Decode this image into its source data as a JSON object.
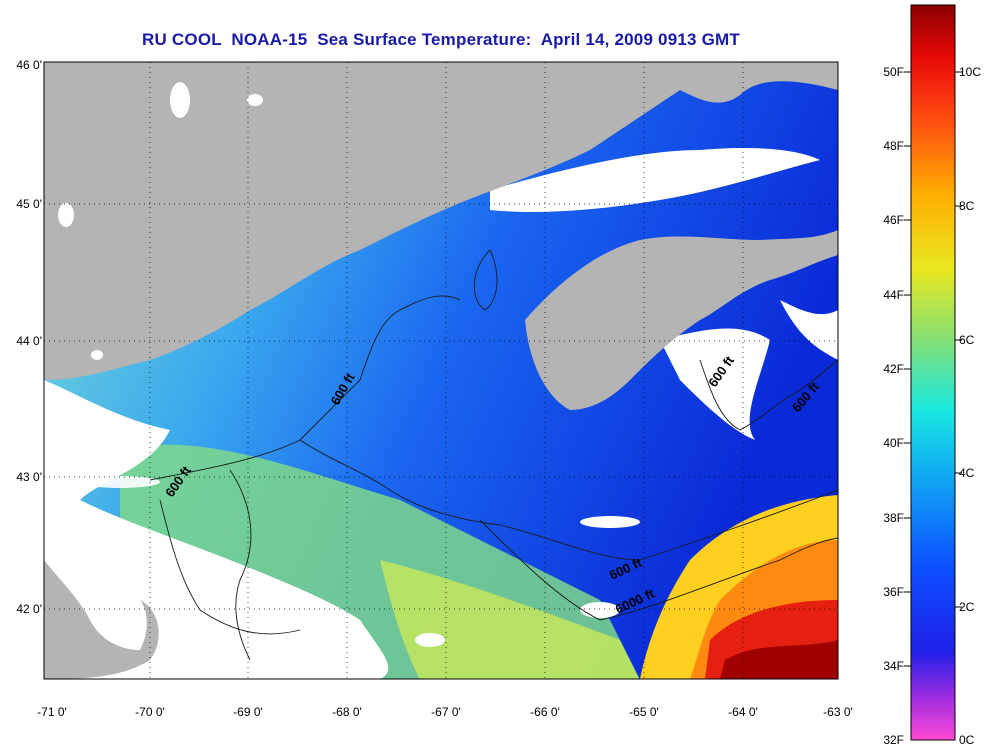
{
  "title": "RU COOL  NOAA-15  Sea Surface Temperature:  April 14, 2009 0913 GMT",
  "lat_labels": [
    "46 0'",
    "45 0'",
    "44 0'",
    "43 0'",
    "42 0'"
  ],
  "lon_labels": [
    "-71 0'",
    "-70 0'",
    "-69 0'",
    "-68 0'",
    "-67 0'",
    "-66 0'",
    "-65 0'",
    "-64 0'",
    "-63 0'"
  ],
  "contour_labels": [
    "600 ft",
    "600 ft",
    "600 ft",
    "600 ft",
    "600 ft",
    "6000 ft"
  ],
  "colorbar": {
    "f_labels": [
      "50F",
      "48F",
      "46F",
      "44F",
      "42F",
      "40F",
      "38F",
      "36F",
      "34F",
      "32F"
    ],
    "c_labels": [
      "10C",
      "8C",
      "6C",
      "4C",
      "2C",
      "0C"
    ]
  },
  "colors": {
    "land": "#b4b4b4",
    "cloud": "#ffffff",
    "title": "#1a1aa8"
  }
}
